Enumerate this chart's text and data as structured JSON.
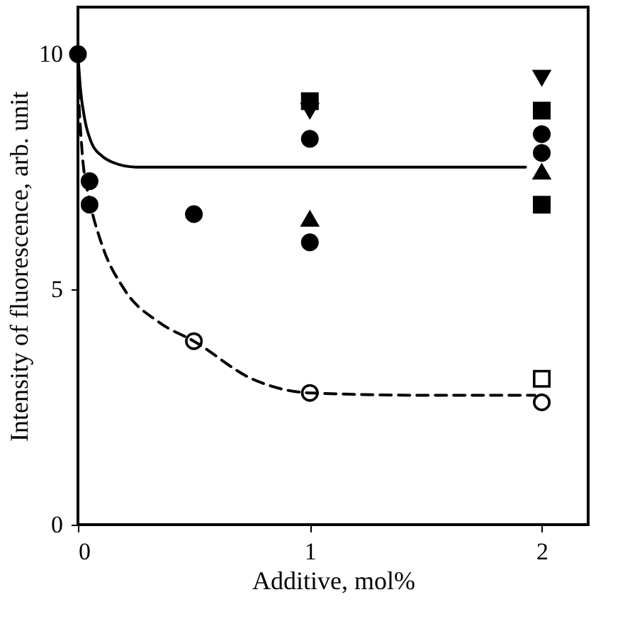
{
  "chart_data": {
    "type": "scatter",
    "xlabel": "Additive, mol%",
    "ylabel": "Intensity of fluorescence, arb. unit",
    "xlim": [
      0,
      2.2
    ],
    "ylim": [
      0,
      11
    ],
    "xticks": [
      0,
      1,
      2
    ],
    "yticks": [
      0,
      5,
      10
    ],
    "grid": false,
    "series": [
      {
        "marker": "circle",
        "color": "#000000",
        "x": [
          0,
          0.05,
          0.05,
          0.5,
          1,
          1,
          2,
          2
        ],
        "values": [
          10,
          7.3,
          6.8,
          6.6,
          8.2,
          6.0,
          8.3,
          7.9
        ]
      },
      {
        "marker": "triangle",
        "color": "#000000",
        "x": [
          1,
          2
        ],
        "values": [
          6.5,
          7.5
        ]
      },
      {
        "marker": "square",
        "color": "#000000",
        "x": [
          1,
          2,
          2
        ],
        "values": [
          9.0,
          8.8,
          6.8
        ]
      },
      {
        "marker": "triangle-down",
        "color": "#000000",
        "x": [
          1,
          2
        ],
        "values": [
          8.8,
          9.5
        ]
      },
      {
        "marker": "circle",
        "color": "#ffffff",
        "x": [
          0.5,
          1,
          2
        ],
        "values": [
          3.9,
          2.8,
          2.6
        ]
      },
      {
        "marker": "square",
        "color": "#ffffff",
        "x": [
          2
        ],
        "values": [
          3.1
        ]
      },
      {
        "type": "line",
        "marker": "none",
        "line_style": "solid",
        "color": "#000000",
        "x": [
          0,
          0.01,
          0.03,
          0.06,
          0.1,
          0.15,
          0.25,
          1.93
        ],
        "values": [
          10,
          9.3,
          8.6,
          8.1,
          7.85,
          7.7,
          7.6,
          7.6
        ]
      },
      {
        "type": "line",
        "marker": "none",
        "line_style": "dashed",
        "color": "#000000",
        "x": [
          0,
          0.02,
          0.05,
          0.1,
          0.2,
          0.35,
          0.5,
          0.75,
          1,
          1.5,
          1.97
        ],
        "values": [
          9.3,
          7.8,
          6.9,
          6.0,
          5.0,
          4.3,
          3.9,
          3.1,
          2.8,
          2.75,
          2.75
        ]
      }
    ]
  }
}
